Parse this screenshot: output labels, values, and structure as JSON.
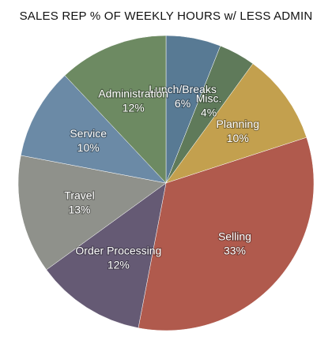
{
  "chart_data": {
    "type": "pie",
    "title": "SALES REP % OF WEEKLY HOURS w/ LESS ADMIN",
    "slices": [
      {
        "label": "Lunch/Breaks",
        "value": 6,
        "display": "6%",
        "color": "#587a94"
      },
      {
        "label": "Misc.",
        "value": 4,
        "display": "4%",
        "color": "#5f7a5a"
      },
      {
        "label": "Planning",
        "value": 10,
        "display": "10%",
        "color": "#c3a04e"
      },
      {
        "label": "Selling",
        "value": 33,
        "display": "33%",
        "color": "#b05a4d"
      },
      {
        "label": "Order Processing",
        "value": 12,
        "display": "12%",
        "color": "#655a74"
      },
      {
        "label": "Travel",
        "value": 13,
        "display": "13%",
        "color": "#8f918b"
      },
      {
        "label": "Service",
        "value": 10,
        "display": "10%",
        "color": "#6b8aa6"
      },
      {
        "label": "Administration",
        "value": 12,
        "display": "12%",
        "color": "#6d8a62"
      }
    ]
  }
}
